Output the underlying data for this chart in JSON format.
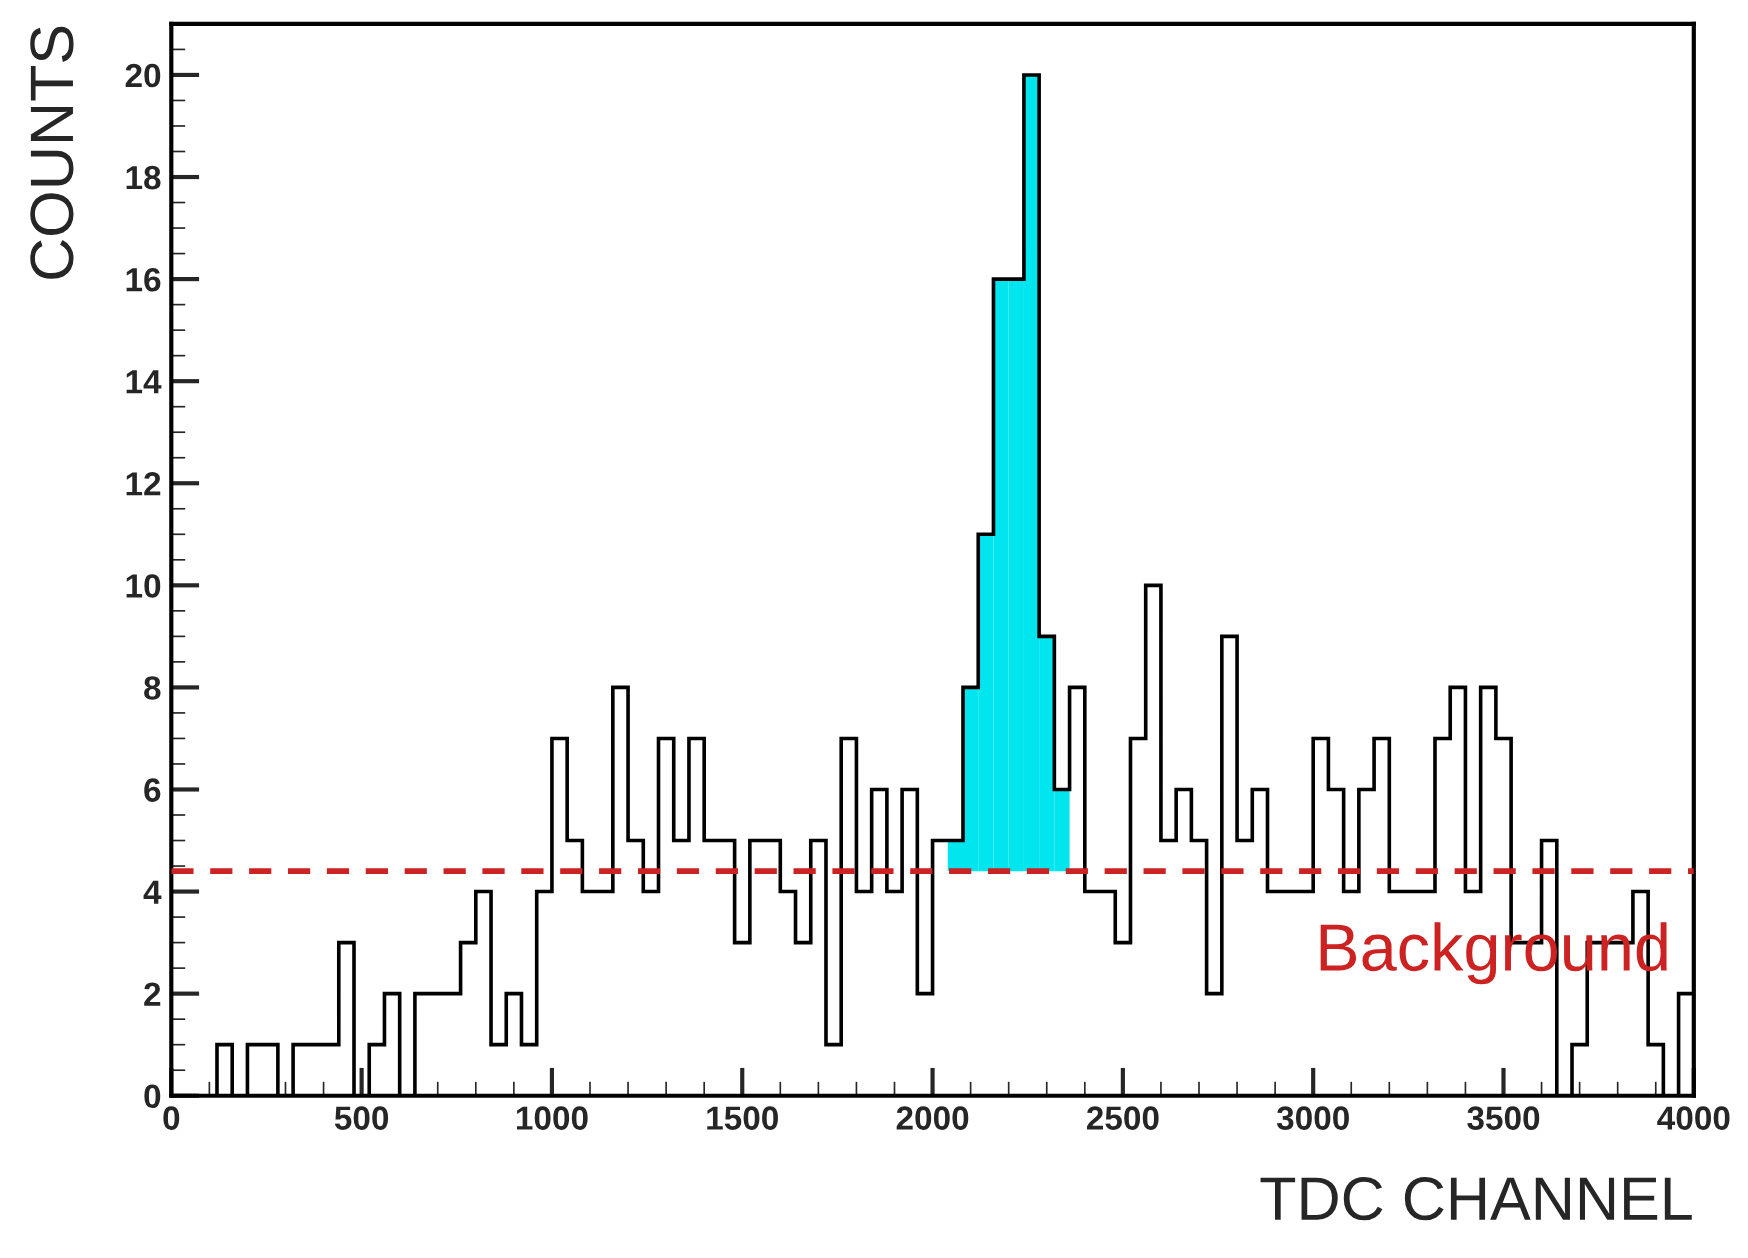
{
  "chart_data": {
    "type": "histogram",
    "xlabel": "TDC CHANNEL",
    "ylabel": "COUNTS",
    "bins": [
      0,
      40,
      80,
      120,
      160,
      200,
      240,
      280,
      320,
      360,
      400,
      440,
      480,
      520,
      560,
      600,
      640,
      680,
      720,
      760,
      800,
      840,
      880,
      920,
      960,
      1000,
      1040,
      1080,
      1120,
      1160,
      1200,
      1240,
      1280,
      1320,
      1360,
      1400,
      1440,
      1480,
      1520,
      1560,
      1600,
      1640,
      1680,
      1720,
      1760,
      1800,
      1840,
      1880,
      1920,
      1960,
      2000,
      2040,
      2080,
      2120,
      2160,
      2200,
      2240,
      2280,
      2320,
      2360,
      2400,
      2440,
      2480,
      2520,
      2560,
      2600,
      2640,
      2680,
      2720,
      2760,
      2800,
      2840,
      2880,
      2920,
      2960,
      3000,
      3040,
      3080,
      3120,
      3160,
      3200,
      3240,
      3280,
      3320,
      3360,
      3400,
      3440,
      3480,
      3520,
      3560,
      3600,
      3640,
      3680,
      3720,
      3760,
      3800,
      3840,
      3880,
      3920,
      3960,
      4000
    ],
    "series": [
      {
        "color": "#000000",
        "values": [
          0,
          0,
          0,
          1,
          0,
          1,
          1,
          0,
          1,
          1,
          1,
          3,
          0,
          1,
          2,
          0,
          2,
          2,
          2,
          3,
          4,
          1,
          2,
          1,
          4,
          7,
          5,
          4,
          4,
          8,
          5,
          4,
          7,
          5,
          7,
          5,
          5,
          3,
          5,
          5,
          4,
          3,
          5,
          1,
          7,
          4,
          6,
          4,
          6,
          2,
          5,
          5,
          8,
          11,
          16,
          16,
          20,
          9,
          6,
          8,
          4,
          4,
          3,
          7,
          10,
          5,
          6,
          5,
          2,
          9,
          5,
          6,
          4,
          4,
          4,
          7,
          6,
          4,
          6,
          7,
          4,
          4,
          4,
          7,
          8,
          4,
          8,
          7,
          3,
          3,
          5,
          0,
          1,
          3,
          3,
          3,
          4,
          1,
          0,
          2
        ]
      },
      {
        "type": "histogram",
        "color": "#00e5ee",
        "bins": [
          2040,
          2080,
          2120,
          2160,
          2200,
          2240,
          2280,
          2320,
          2360
        ],
        "values": [
          5,
          8,
          11,
          16,
          16,
          20,
          9,
          6
        ]
      }
    ],
    "ref_lines": [
      {
        "axis": "y",
        "value": 4.4,
        "label": "Background",
        "color": "#cc2222",
        "line_style": "dashed"
      }
    ],
    "xlim": [
      0,
      4000
    ],
    "xticks": [
      0,
      500,
      1000,
      1500,
      2000,
      2500,
      3000,
      3500,
      4000
    ],
    "ylim": [
      0,
      21
    ],
    "yticks": [
      0,
      2,
      4,
      6,
      8,
      10,
      12,
      14,
      16,
      18,
      20
    ],
    "grid": false,
    "legend": false
  }
}
